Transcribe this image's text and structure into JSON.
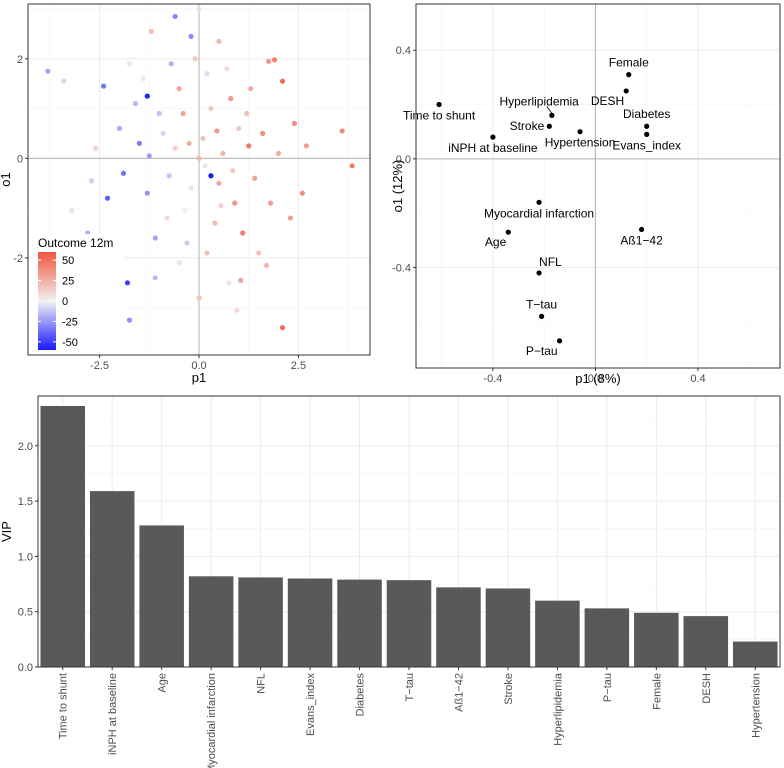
{
  "chart_data": [
    {
      "type": "scatter",
      "title": "",
      "xlabel": "p1",
      "ylabel": "o1",
      "xlim": [
        -4.3,
        4.3
      ],
      "ylim": [
        -3.95,
        3.1
      ],
      "xticks": [
        -2.5,
        0,
        2.5
      ],
      "xtick_labels": [
        "-2.5",
        "0.0",
        "2.5"
      ],
      "yticks": [
        -2,
        0,
        2
      ],
      "ytick_labels": [
        "-2",
        "0",
        "2"
      ],
      "grid": true,
      "legend": {
        "title": "Outcome 12m",
        "position": "bottom-left-inside",
        "min": -60,
        "max": 60,
        "ticks": [
          50,
          25,
          0,
          -25,
          -50
        ],
        "tick_labels": [
          "50",
          "25",
          "0",
          "-25",
          "-50"
        ],
        "colors": {
          "low": "#1a1aff",
          "mid": "#f2f2f2",
          "high": "#f2543f"
        }
      },
      "points": [
        {
          "x": -3.8,
          "y": 1.75,
          "outcome": -22
        },
        {
          "x": -3.4,
          "y": 1.55,
          "outcome": -8
        },
        {
          "x": -2.4,
          "y": 1.45,
          "outcome": -35
        },
        {
          "x": -1.3,
          "y": 1.25,
          "outcome": -58
        },
        {
          "x": -1.75,
          "y": 1.9,
          "outcome": -3
        },
        {
          "x": -1.2,
          "y": 2.55,
          "outcome": 20
        },
        {
          "x": -0.6,
          "y": 2.85,
          "outcome": -30
        },
        {
          "x": -0.2,
          "y": 2.45,
          "outcome": -28
        },
        {
          "x": 0.0,
          "y": 3.0,
          "outcome": 8
        },
        {
          "x": 0.5,
          "y": 2.35,
          "outcome": 22
        },
        {
          "x": 1.75,
          "y": 1.95,
          "outcome": 35
        },
        {
          "x": 1.9,
          "y": 1.98,
          "outcome": 42
        },
        {
          "x": 2.1,
          "y": 1.55,
          "outcome": 52
        },
        {
          "x": 3.6,
          "y": 0.55,
          "outcome": 40
        },
        {
          "x": 3.85,
          "y": -0.15,
          "outcome": 45
        },
        {
          "x": 2.6,
          "y": -0.7,
          "outcome": 38
        },
        {
          "x": -1.8,
          "y": -2.5,
          "outcome": -50
        },
        {
          "x": -1.75,
          "y": -3.25,
          "outcome": -28
        },
        {
          "x": -1.1,
          "y": -2.4,
          "outcome": -15
        },
        {
          "x": 0.0,
          "y": -2.8,
          "outcome": 18
        },
        {
          "x": 0.75,
          "y": -2.5,
          "outcome": 5
        },
        {
          "x": 1.05,
          "y": -2.45,
          "outcome": 30
        },
        {
          "x": 0.95,
          "y": -3.05,
          "outcome": 10
        },
        {
          "x": 2.1,
          "y": -3.4,
          "outcome": 50
        },
        {
          "x": 1.7,
          "y": -2.15,
          "outcome": 24
        },
        {
          "x": -2.2,
          "y": -2.0,
          "outcome": -12
        },
        {
          "x": -3.2,
          "y": -1.05,
          "outcome": -4
        },
        {
          "x": -2.8,
          "y": -1.5,
          "outcome": -18
        },
        {
          "x": 0.3,
          "y": -0.35,
          "outcome": -62
        },
        {
          "x": -2.6,
          "y": 0.2,
          "outcome": 12
        },
        {
          "x": -2.0,
          "y": 0.6,
          "outcome": -20
        },
        {
          "x": -1.5,
          "y": 0.3,
          "outcome": -32
        },
        {
          "x": -1.0,
          "y": 0.9,
          "outcome": -14
        },
        {
          "x": -0.5,
          "y": 1.4,
          "outcome": 28
        },
        {
          "x": -0.1,
          "y": 2.0,
          "outcome": 15
        },
        {
          "x": 0.2,
          "y": 1.7,
          "outcome": -6
        },
        {
          "x": 0.8,
          "y": 1.2,
          "outcome": 34
        },
        {
          "x": 1.2,
          "y": 0.9,
          "outcome": 20
        },
        {
          "x": 1.6,
          "y": 0.5,
          "outcome": 40
        },
        {
          "x": 2.0,
          "y": 0.1,
          "outcome": 26
        },
        {
          "x": 1.4,
          "y": -0.4,
          "outcome": 30
        },
        {
          "x": 0.9,
          "y": -0.9,
          "outcome": 36
        },
        {
          "x": 0.4,
          "y": -1.3,
          "outcome": 22
        },
        {
          "x": -0.3,
          "y": -1.7,
          "outcome": -10
        },
        {
          "x": -0.8,
          "y": -1.2,
          "outcome": 8
        },
        {
          "x": -1.3,
          "y": -0.7,
          "outcome": -26
        },
        {
          "x": -1.9,
          "y": -0.3,
          "outcome": -36
        },
        {
          "x": -0.6,
          "y": 0.2,
          "outcome": 12
        },
        {
          "x": 0.1,
          "y": 0.4,
          "outcome": 18
        },
        {
          "x": 0.6,
          "y": 0.1,
          "outcome": 24
        },
        {
          "x": 1.0,
          "y": 0.6,
          "outcome": 14
        },
        {
          "x": -0.2,
          "y": -0.6,
          "outcome": 6
        },
        {
          "x": 0.5,
          "y": -0.5,
          "outcome": 28
        },
        {
          "x": -0.9,
          "y": 0.5,
          "outcome": -8
        },
        {
          "x": -0.4,
          "y": 0.9,
          "outcome": 30
        },
        {
          "x": 0.3,
          "y": 1.0,
          "outcome": 16
        },
        {
          "x": 1.3,
          "y": 1.4,
          "outcome": 27
        },
        {
          "x": 1.8,
          "y": -0.9,
          "outcome": 33
        },
        {
          "x": -1.6,
          "y": 1.1,
          "outcome": -16
        },
        {
          "x": -2.3,
          "y": -0.8,
          "outcome": -42
        },
        {
          "x": -1.1,
          "y": -1.6,
          "outcome": -22
        },
        {
          "x": -0.5,
          "y": -2.1,
          "outcome": -4
        },
        {
          "x": 0.2,
          "y": -1.9,
          "outcome": 20
        },
        {
          "x": 1.1,
          "y": -1.5,
          "outcome": 44
        },
        {
          "x": 1.5,
          "y": -1.9,
          "outcome": 18
        },
        {
          "x": 2.3,
          "y": -1.2,
          "outcome": 32
        },
        {
          "x": 2.4,
          "y": 0.7,
          "outcome": 38
        },
        {
          "x": 0.7,
          "y": 1.8,
          "outcome": 10
        },
        {
          "x": -0.7,
          "y": 1.9,
          "outcome": -18
        },
        {
          "x": -1.4,
          "y": 1.6,
          "outcome": 4
        },
        {
          "x": 0.0,
          "y": 0.0,
          "outcome": 22
        },
        {
          "x": 0.15,
          "y": -0.15,
          "outcome": -3
        },
        {
          "x": -0.25,
          "y": 0.3,
          "outcome": 26
        },
        {
          "x": 0.45,
          "y": 0.55,
          "outcome": 35
        },
        {
          "x": 0.85,
          "y": -0.25,
          "outcome": 16
        },
        {
          "x": -0.75,
          "y": -0.35,
          "outcome": -12
        },
        {
          "x": 1.25,
          "y": 0.25,
          "outcome": 46
        },
        {
          "x": -1.25,
          "y": 0.05,
          "outcome": -24
        },
        {
          "x": 0.55,
          "y": -0.95,
          "outcome": 12
        },
        {
          "x": -0.35,
          "y": -1.05,
          "outcome": 2
        },
        {
          "x": 2.7,
          "y": 0.25,
          "outcome": 30
        },
        {
          "x": -2.7,
          "y": -0.45,
          "outcome": -10
        }
      ]
    },
    {
      "type": "scatter",
      "title": "",
      "xlabel": "p1 (8%)",
      "ylabel": "o1 (12%)",
      "xlim": [
        -0.7,
        0.72
      ],
      "ylim": [
        -0.77,
        0.57
      ],
      "xticks": [
        -0.4,
        0.0,
        0.4
      ],
      "xtick_labels": [
        "-0.4",
        "0.0",
        "0.4"
      ],
      "yticks": [
        -0.4,
        0.0,
        0.4
      ],
      "ytick_labels": [
        "-0.4",
        "0.0",
        "0.4"
      ],
      "grid": true,
      "points": [
        {
          "label": "Female",
          "x": 0.13,
          "y": 0.31,
          "label_pos": "above"
        },
        {
          "label": "DESH",
          "x": 0.12,
          "y": 0.25,
          "label_pos": "below-left"
        },
        {
          "label": "Hyperlipidemia",
          "x": -0.17,
          "y": 0.16,
          "label_pos": "above-left"
        },
        {
          "label": "Time to shunt",
          "x": -0.61,
          "y": 0.2,
          "label_pos": "below"
        },
        {
          "label": "Stroke",
          "x": -0.18,
          "y": 0.12,
          "label_pos": "left"
        },
        {
          "label": "Diabetes",
          "x": 0.2,
          "y": 0.12,
          "label_pos": "above"
        },
        {
          "label": "Hypertension",
          "x": -0.06,
          "y": 0.1,
          "label_pos": "below"
        },
        {
          "label": "Evans_index",
          "x": 0.2,
          "y": 0.09,
          "label_pos": "below"
        },
        {
          "label": "iNPH at baseline",
          "x": -0.4,
          "y": 0.08,
          "label_pos": "below"
        },
        {
          "label": "Myocardial infarction",
          "x": -0.22,
          "y": -0.16,
          "label_pos": "below"
        },
        {
          "label": "Aß1−42",
          "x": 0.18,
          "y": -0.26,
          "label_pos": "below"
        },
        {
          "label": "Age",
          "x": -0.34,
          "y": -0.27,
          "label_pos": "below-left"
        },
        {
          "label": "NFL",
          "x": -0.22,
          "y": -0.42,
          "label_pos": "above-right"
        },
        {
          "label": "T−tau",
          "x": -0.21,
          "y": -0.58,
          "label_pos": "above"
        },
        {
          "label": "P−tau",
          "x": -0.14,
          "y": -0.67,
          "label_pos": "below-left"
        }
      ]
    },
    {
      "type": "bar",
      "title": "",
      "xlabel": "",
      "ylabel": "VIP",
      "ylim": [
        0,
        2.45
      ],
      "yticks": [
        0,
        0.5,
        1,
        1.5,
        2
      ],
      "ytick_labels": [
        "0.0",
        "0.5",
        "1.0",
        "1.5",
        "2.0"
      ],
      "grid": true,
      "bar_color": "#595959",
      "categories": [
        "Time to shunt",
        "iNPH at baseline",
        "Age",
        "Myocardial infarction",
        "NFL",
        "Evans_index",
        "Diabetes",
        "T−tau",
        "Aß1−42",
        "Stroke",
        "Hyperlipidemia",
        "P−tau",
        "Female",
        "DESH",
        "Hypertension"
      ],
      "values": [
        2.36,
        1.59,
        1.28,
        0.82,
        0.81,
        0.8,
        0.79,
        0.785,
        0.72,
        0.71,
        0.6,
        0.53,
        0.49,
        0.46,
        0.23
      ]
    }
  ]
}
